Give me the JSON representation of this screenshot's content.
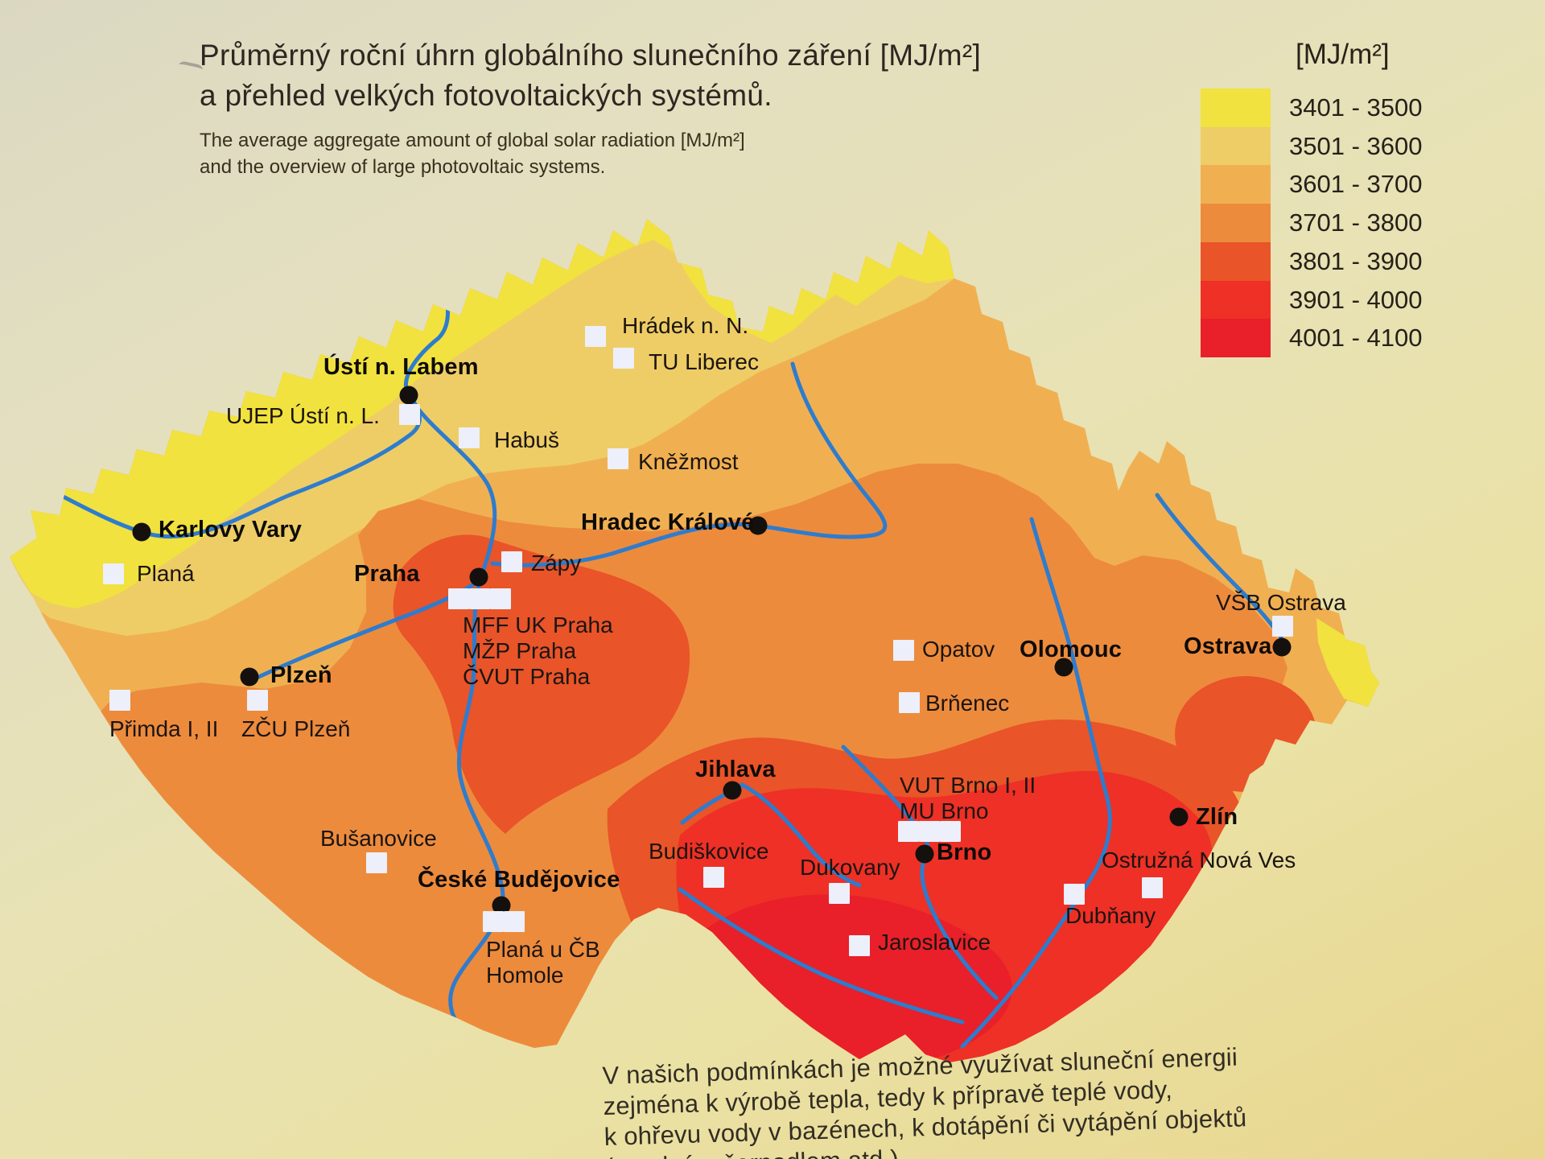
{
  "title": {
    "line1": "Průměrný roční úhrn globálního slunečního záření [MJ/m²]",
    "line2": "a přehled velkých fotovoltaických systémů.",
    "sub1": "The average aggregate amount of global solar radiation [MJ/m²]",
    "sub2": "and the overview of large photovoltaic systems."
  },
  "legend": {
    "unit_label": "[MJ/m²]",
    "bands": [
      {
        "range": "3401 - 3500",
        "color": "#f1e23f"
      },
      {
        "range": "3501 - 3600",
        "color": "#eecd66"
      },
      {
        "range": "3601 - 3700",
        "color": "#f0b052"
      },
      {
        "range": "3701 - 3800",
        "color": "#ed8b3d"
      },
      {
        "range": "3801 - 3900",
        "color": "#e95429"
      },
      {
        "range": "3901 - 4000",
        "color": "#ee3026"
      },
      {
        "range": "4001 - 4100",
        "color": "#e91f29"
      }
    ]
  },
  "colors": {
    "river": "#2e7ccd",
    "pv_square": "#edeffa",
    "city_dot": "#14100d"
  },
  "map": {
    "cities": [
      {
        "name": "Ústí n. Labem",
        "dot": [
          508,
          491
        ],
        "label": [
          402,
          440
        ]
      },
      {
        "name": "Karlovy Vary",
        "dot": [
          176,
          661
        ],
        "label": [
          197,
          642
        ]
      },
      {
        "name": "Praha",
        "dot": [
          595,
          717
        ],
        "label": [
          440,
          697
        ]
      },
      {
        "name": "Plzeň",
        "dot": [
          310,
          841
        ],
        "label": [
          336,
          823
        ]
      },
      {
        "name": "Hradec Králové",
        "dot": [
          942,
          653
        ],
        "label": [
          722,
          633
        ]
      },
      {
        "name": "Olomouc",
        "dot": [
          1322,
          829
        ],
        "label": [
          1267,
          791
        ]
      },
      {
        "name": "Ostrava",
        "dot": [
          1593,
          804
        ],
        "label": [
          1471,
          787
        ]
      },
      {
        "name": "Jihlava",
        "dot": [
          910,
          982
        ],
        "label": [
          864,
          940
        ]
      },
      {
        "name": "Brno",
        "dot": [
          1149,
          1061
        ],
        "label": [
          1164,
          1043
        ]
      },
      {
        "name": "Zlín",
        "dot": [
          1465,
          1015
        ],
        "label": [
          1486,
          999
        ]
      },
      {
        "name": "České Budějovice",
        "dot": [
          623,
          1125
        ],
        "label": [
          519,
          1077
        ]
      }
    ],
    "pv_systems": [
      {
        "label_lines": [
          "Hrádek n. N."
        ],
        "squares": [
          [
            727,
            405
          ]
        ],
        "label": [
          773,
          389
        ]
      },
      {
        "label_lines": [
          "TU Liberec"
        ],
        "squares": [
          [
            762,
            432
          ]
        ],
        "label": [
          806,
          434
        ]
      },
      {
        "label_lines": [
          "UJEP Ústí n. L."
        ],
        "squares": [
          [
            496,
            502
          ]
        ],
        "label": [
          281,
          501
        ]
      },
      {
        "label_lines": [
          "Habuš"
        ],
        "squares": [
          [
            570,
            531
          ]
        ],
        "label": [
          614,
          531
        ]
      },
      {
        "label_lines": [
          "Kněžmost"
        ],
        "squares": [
          [
            755,
            557
          ]
        ],
        "label": [
          793,
          558
        ]
      },
      {
        "label_lines": [
          "Planá"
        ],
        "squares": [
          [
            128,
            700
          ]
        ],
        "label": [
          170,
          697
        ]
      },
      {
        "label_lines": [
          "Zápy"
        ],
        "squares": [
          [
            623,
            685
          ]
        ],
        "label": [
          660,
          684
        ]
      },
      {
        "label_lines": [
          "MFF UK Praha",
          "MŽP Praha",
          "ČVUT Praha"
        ],
        "squares": [
          [
            557,
            731
          ],
          [
            583,
            731
          ],
          [
            609,
            731
          ]
        ],
        "label": [
          575,
          761
        ]
      },
      {
        "label_lines": [
          "Přimda I, II"
        ],
        "squares": [
          [
            136,
            857
          ]
        ],
        "label": [
          136,
          890
        ]
      },
      {
        "label_lines": [
          "ZČU Plzeň"
        ],
        "squares": [
          [
            307,
            857
          ]
        ],
        "label": [
          300,
          890
        ]
      },
      {
        "label_lines": [
          "Opatov"
        ],
        "squares": [
          [
            1110,
            795
          ]
        ],
        "label": [
          1146,
          791
        ]
      },
      {
        "label_lines": [
          "VŠB Ostrava"
        ],
        "squares": [
          [
            1581,
            765
          ]
        ],
        "label": [
          1511,
          733
        ]
      },
      {
        "label_lines": [
          "Brňenec"
        ],
        "squares": [
          [
            1117,
            860
          ]
        ],
        "label": [
          1150,
          858
        ]
      },
      {
        "label_lines": [
          "VUT Brno I, II",
          "MU Brno"
        ],
        "squares": [
          [
            1116,
            1020
          ],
          [
            1142,
            1020
          ],
          [
            1168,
            1020
          ]
        ],
        "label": [
          1118,
          960
        ]
      },
      {
        "label_lines": [
          "Budiškovice"
        ],
        "squares": [
          [
            874,
            1077
          ]
        ],
        "label": [
          806,
          1042
        ]
      },
      {
        "label_lines": [
          "Dukovany"
        ],
        "squares": [
          [
            1030,
            1097
          ]
        ],
        "label": [
          994,
          1062
        ]
      },
      {
        "label_lines": [
          "Jaroslavice"
        ],
        "squares": [
          [
            1055,
            1162
          ]
        ],
        "label": [
          1091,
          1155
        ]
      },
      {
        "label_lines": [
          "Bušanovice"
        ],
        "squares": [
          [
            455,
            1059
          ]
        ],
        "label": [
          398,
          1026
        ]
      },
      {
        "label_lines": [
          "Planá u ČB",
          "Homole"
        ],
        "squares": [
          [
            600,
            1132
          ],
          [
            626,
            1132
          ]
        ],
        "label": [
          604,
          1164
        ]
      },
      {
        "label_lines": [
          "Dubňany"
        ],
        "squares": [
          [
            1322,
            1098
          ]
        ],
        "label": [
          1324,
          1122
        ]
      },
      {
        "label_lines": [
          "Ostružná Nová Ves"
        ],
        "squares": [
          [
            1419,
            1090
          ]
        ],
        "label": [
          1369,
          1053
        ]
      }
    ]
  },
  "footer": {
    "lines": [
      "V našich podmínkách je možné využívat sluneční energii",
      "zejména k výrobě tepla, tedy k přípravě teplé vody,",
      "k ohřevu vody v bazénech, k dotápění či vytápění objektů",
      "(tepelným čerpadlem atd.)"
    ]
  }
}
